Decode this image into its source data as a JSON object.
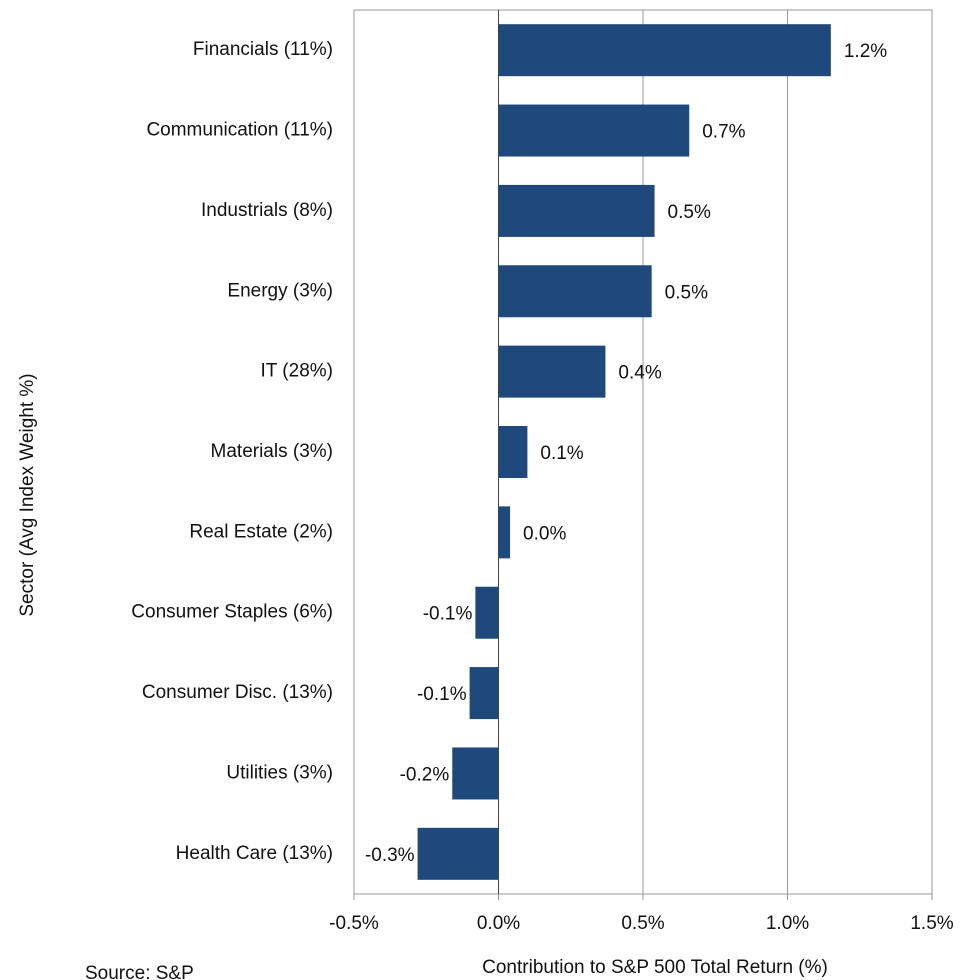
{
  "chart_data": {
    "type": "bar",
    "orientation": "horizontal",
    "y_label": "Sector (Avg Index Weight %)",
    "x_label": "Contribution to S&P 500  Total Return (%)",
    "note": "Source: S&P",
    "categories": [
      "Financials (11%)",
      "Communication (11%)",
      "Industrials (8%)",
      "Energy (3%)",
      "IT (28%)",
      "Materials (3%)",
      "Real Estate (2%)",
      "Consumer Staples (6%)",
      "Consumer Disc. (13%)",
      "Utilities (3%)",
      "Health Care (13%)"
    ],
    "values": [
      1.15,
      0.66,
      0.54,
      0.53,
      0.37,
      0.1,
      0.04,
      -0.08,
      -0.1,
      -0.16,
      -0.28
    ],
    "value_labels": [
      "1.2%",
      "0.7%",
      "0.5%",
      "0.5%",
      "0.4%",
      "0.1%",
      "0.0%",
      "-0.1%",
      "-0.1%",
      "-0.2%",
      "-0.3%"
    ],
    "color": "#1f497d",
    "xlim": [
      -0.5,
      1.5
    ],
    "xticks": [
      {
        "value": -0.5,
        "label": "-0.5%"
      },
      {
        "value": 0,
        "label": "0.0%"
      },
      {
        "value": 0.5,
        "label": "0.5%"
      },
      {
        "value": 1.0,
        "label": "1.0%"
      },
      {
        "value": 1.5,
        "label": "1.5%"
      }
    ],
    "grid": true
  }
}
